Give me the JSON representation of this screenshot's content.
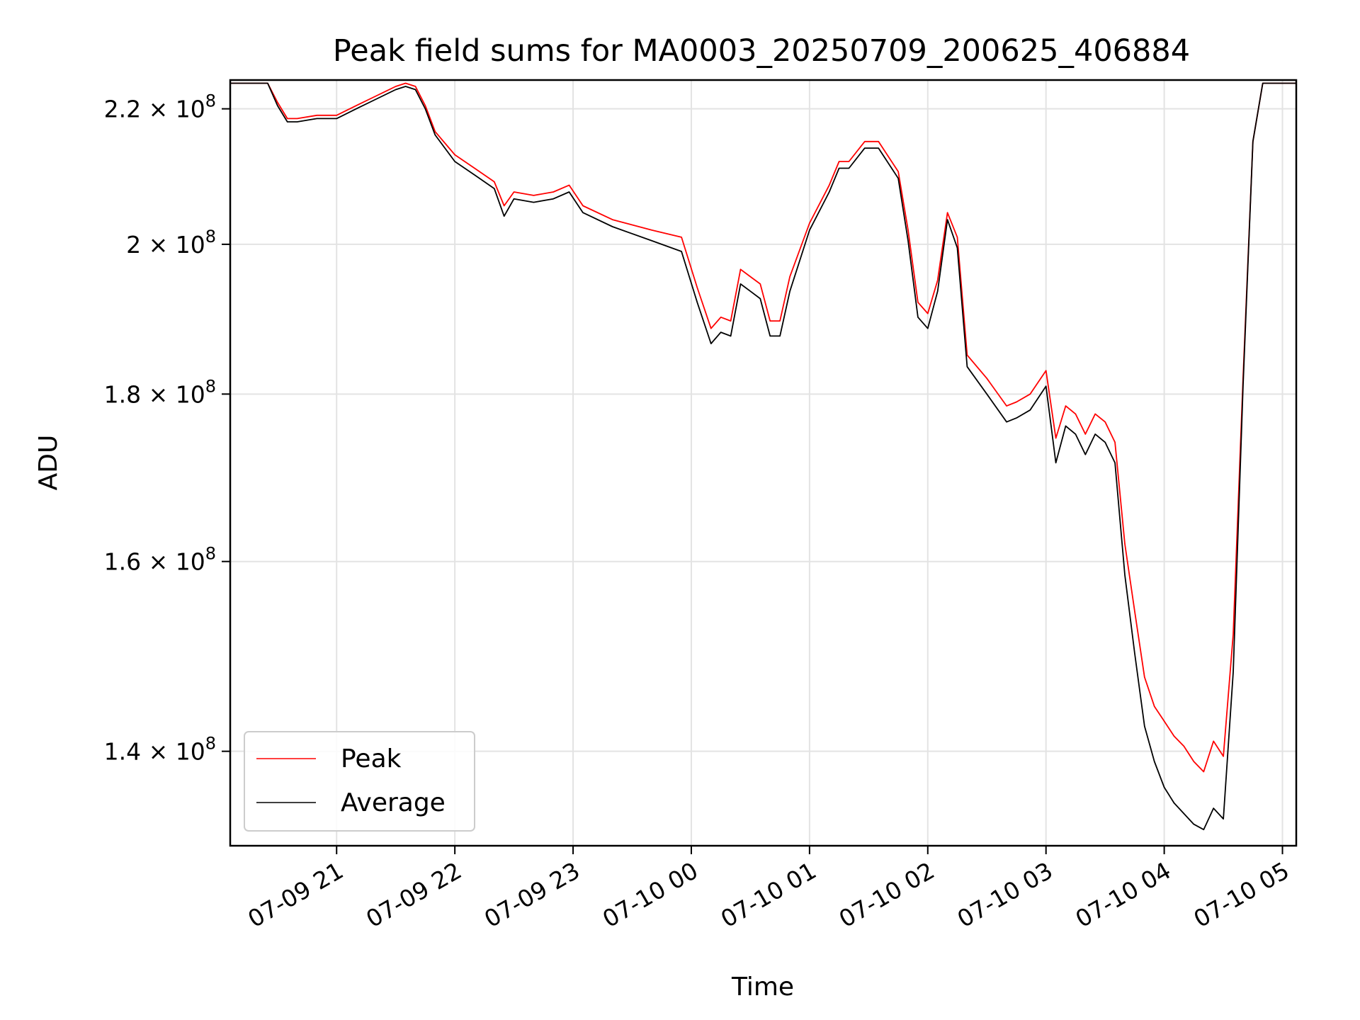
{
  "chart_data": {
    "type": "line",
    "title": "Peak field sums for MA0003_20250709_200625_406884",
    "xlabel": "Time",
    "ylabel": "ADU",
    "yscale": "log",
    "grid": true,
    "legend_position": "lower-left",
    "x_range": [
      "2025-07-09 20:06",
      "2025-07-10 05:07"
    ],
    "ylim": [
      131000000,
      224500000
    ],
    "x_ticks": [
      "2025-07-09 21:00",
      "2025-07-09 22:00",
      "2025-07-09 23:00",
      "2025-07-10 00:00",
      "2025-07-10 01:00",
      "2025-07-10 02:00",
      "2025-07-10 03:00",
      "2025-07-10 04:00",
      "2025-07-10 05:00"
    ],
    "x_tick_labels": [
      "07-09 21",
      "07-09 22",
      "07-09 23",
      "07-10 00",
      "07-10 01",
      "07-10 02",
      "07-10 03",
      "07-10 04",
      "07-10 05"
    ],
    "y_ticks": [
      140000000,
      160000000,
      180000000,
      200000000,
      220000000
    ],
    "y_tick_labels": [
      {
        "mantissa": "1.4",
        "exponent": "8"
      },
      {
        "mantissa": "1.6",
        "exponent": "8"
      },
      {
        "mantissa": "1.8",
        "exponent": "8"
      },
      {
        "mantissa": "2",
        "exponent": "8"
      },
      {
        "mantissa": "2.2",
        "exponent": "8"
      }
    ],
    "series": [
      {
        "name": "Peak",
        "color": "#ff0000",
        "x": [
          "2025-07-09 20:06",
          "2025-07-09 20:25",
          "2025-07-09 20:30",
          "2025-07-09 20:35",
          "2025-07-09 20:40",
          "2025-07-09 20:50",
          "2025-07-09 21:00",
          "2025-07-09 21:10",
          "2025-07-09 21:20",
          "2025-07-09 21:30",
          "2025-07-09 21:35",
          "2025-07-09 21:40",
          "2025-07-09 21:45",
          "2025-07-09 21:50",
          "2025-07-09 22:00",
          "2025-07-09 22:10",
          "2025-07-09 22:20",
          "2025-07-09 22:25",
          "2025-07-09 22:30",
          "2025-07-09 22:40",
          "2025-07-09 22:50",
          "2025-07-09 22:58",
          "2025-07-09 23:05",
          "2025-07-09 23:20",
          "2025-07-09 23:40",
          "2025-07-09 23:55",
          "2025-07-10 00:03",
          "2025-07-10 00:10",
          "2025-07-10 00:15",
          "2025-07-10 00:20",
          "2025-07-10 00:25",
          "2025-07-10 00:30",
          "2025-07-10 00:35",
          "2025-07-10 00:40",
          "2025-07-10 00:45",
          "2025-07-10 00:50",
          "2025-07-10 01:00",
          "2025-07-10 01:10",
          "2025-07-10 01:15",
          "2025-07-10 01:20",
          "2025-07-10 01:28",
          "2025-07-10 01:35",
          "2025-07-10 01:45",
          "2025-07-10 01:50",
          "2025-07-10 01:55",
          "2025-07-10 02:00",
          "2025-07-10 02:05",
          "2025-07-10 02:10",
          "2025-07-10 02:15",
          "2025-07-10 02:20",
          "2025-07-10 02:30",
          "2025-07-10 02:40",
          "2025-07-10 02:45",
          "2025-07-10 02:52",
          "2025-07-10 03:00",
          "2025-07-10 03:05",
          "2025-07-10 03:10",
          "2025-07-10 03:15",
          "2025-07-10 03:20",
          "2025-07-10 03:25",
          "2025-07-10 03:30",
          "2025-07-10 03:35",
          "2025-07-10 03:40",
          "2025-07-10 03:45",
          "2025-07-10 03:50",
          "2025-07-10 03:55",
          "2025-07-10 04:00",
          "2025-07-10 04:05",
          "2025-07-10 04:10",
          "2025-07-10 04:15",
          "2025-07-10 04:20",
          "2025-07-10 04:25",
          "2025-07-10 04:30",
          "2025-07-10 04:35",
          "2025-07-10 04:40",
          "2025-07-10 04:45",
          "2025-07-10 04:50",
          "2025-07-10 05:07"
        ],
        "values": [
          224000000,
          224000000,
          221000000,
          218500000,
          218500000,
          219000000,
          219000000,
          220500000,
          222000000,
          223500000,
          224000000,
          223500000,
          220500000,
          216500000,
          213000000,
          211000000,
          209000000,
          205500000,
          207500000,
          207000000,
          207500000,
          208500000,
          205500000,
          203500000,
          202000000,
          201000000,
          194000000,
          188500000,
          190000000,
          189500000,
          196500000,
          195500000,
          194500000,
          189500000,
          189500000,
          195500000,
          203000000,
          208500000,
          212000000,
          212000000,
          215000000,
          215000000,
          210500000,
          202000000,
          192000000,
          190500000,
          195000000,
          204500000,
          201000000,
          185000000,
          182000000,
          178500000,
          179000000,
          180000000,
          183000000,
          174500000,
          178500000,
          177500000,
          175000000,
          177500000,
          176500000,
          174000000,
          162000000,
          154500000,
          147500000,
          144500000,
          143000000,
          141500000,
          140500000,
          139000000,
          138000000,
          141000000,
          139500000,
          152000000,
          182000000,
          215000000,
          224000000,
          224000000
        ]
      },
      {
        "name": "Average",
        "color": "#000000",
        "x": [
          "2025-07-09 20:06",
          "2025-07-09 20:25",
          "2025-07-09 20:30",
          "2025-07-09 20:35",
          "2025-07-09 20:40",
          "2025-07-09 20:50",
          "2025-07-09 21:00",
          "2025-07-09 21:10",
          "2025-07-09 21:20",
          "2025-07-09 21:30",
          "2025-07-09 21:35",
          "2025-07-09 21:40",
          "2025-07-09 21:45",
          "2025-07-09 21:50",
          "2025-07-09 22:00",
          "2025-07-09 22:10",
          "2025-07-09 22:20",
          "2025-07-09 22:25",
          "2025-07-09 22:30",
          "2025-07-09 22:40",
          "2025-07-09 22:50",
          "2025-07-09 22:58",
          "2025-07-09 23:05",
          "2025-07-09 23:20",
          "2025-07-09 23:40",
          "2025-07-09 23:55",
          "2025-07-10 00:03",
          "2025-07-10 00:10",
          "2025-07-10 00:15",
          "2025-07-10 00:20",
          "2025-07-10 00:25",
          "2025-07-10 00:30",
          "2025-07-10 00:35",
          "2025-07-10 00:40",
          "2025-07-10 00:45",
          "2025-07-10 00:50",
          "2025-07-10 01:00",
          "2025-07-10 01:10",
          "2025-07-10 01:15",
          "2025-07-10 01:20",
          "2025-07-10 01:28",
          "2025-07-10 01:35",
          "2025-07-10 01:45",
          "2025-07-10 01:50",
          "2025-07-10 01:55",
          "2025-07-10 02:00",
          "2025-07-10 02:05",
          "2025-07-10 02:10",
          "2025-07-10 02:15",
          "2025-07-10 02:20",
          "2025-07-10 02:30",
          "2025-07-10 02:40",
          "2025-07-10 02:45",
          "2025-07-10 02:52",
          "2025-07-10 03:00",
          "2025-07-10 03:05",
          "2025-07-10 03:10",
          "2025-07-10 03:15",
          "2025-07-10 03:20",
          "2025-07-10 03:25",
          "2025-07-10 03:30",
          "2025-07-10 03:35",
          "2025-07-10 03:40",
          "2025-07-10 03:45",
          "2025-07-10 03:50",
          "2025-07-10 03:55",
          "2025-07-10 04:00",
          "2025-07-10 04:05",
          "2025-07-10 04:10",
          "2025-07-10 04:15",
          "2025-07-10 04:20",
          "2025-07-10 04:25",
          "2025-07-10 04:30",
          "2025-07-10 04:35",
          "2025-07-10 04:40",
          "2025-07-10 04:45",
          "2025-07-10 04:50",
          "2025-07-10 05:07"
        ],
        "values": [
          224000000,
          224000000,
          220500000,
          218000000,
          218000000,
          218500000,
          218500000,
          220000000,
          221500000,
          223000000,
          223500000,
          223000000,
          220000000,
          216000000,
          212000000,
          210000000,
          208000000,
          204000000,
          206500000,
          206000000,
          206500000,
          207500000,
          204500000,
          202500000,
          200500000,
          199000000,
          192000000,
          186500000,
          188000000,
          187500000,
          194500000,
          193500000,
          192500000,
          187500000,
          187500000,
          193500000,
          202000000,
          207500000,
          211000000,
          211000000,
          214000000,
          214000000,
          209500000,
          200500000,
          190000000,
          188500000,
          193500000,
          203500000,
          199500000,
          183500000,
          180000000,
          176500000,
          177000000,
          178000000,
          181000000,
          171500000,
          176000000,
          175000000,
          172500000,
          175000000,
          174000000,
          171500000,
          158500000,
          150000000,
          142500000,
          139000000,
          136500000,
          135000000,
          134000000,
          133000000,
          132500000,
          134500000,
          133500000,
          148000000,
          181000000,
          215000000,
          224000000,
          224000000
        ]
      }
    ]
  }
}
